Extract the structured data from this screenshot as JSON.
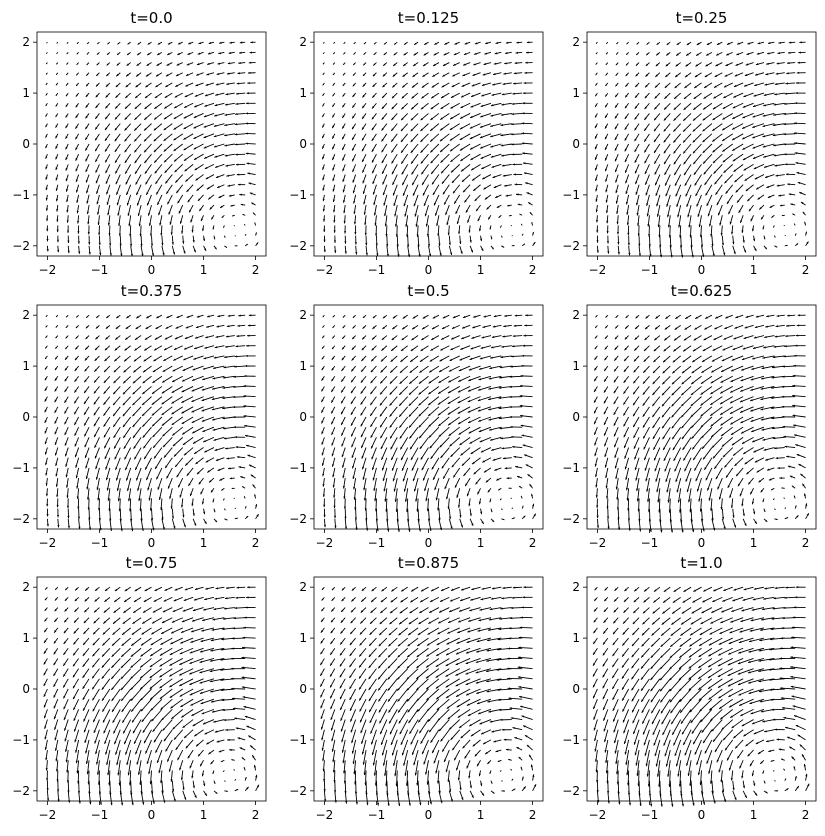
{
  "chart_data": [
    {
      "type": "quiver",
      "title": "t=0.0",
      "t": 0.0,
      "xlim": [
        -2.2,
        2.2
      ],
      "ylim": [
        -2.2,
        2.2
      ],
      "xticks": [
        -2,
        -1,
        0,
        1,
        2
      ],
      "yticks": [
        -2,
        -1,
        0,
        1,
        2
      ],
      "grid": false,
      "arrow_color": "#000000"
    },
    {
      "type": "quiver",
      "title": "t=0.125",
      "t": 0.125,
      "xlim": [
        -2.2,
        2.2
      ],
      "ylim": [
        -2.2,
        2.2
      ],
      "xticks": [
        -2,
        -1,
        0,
        1,
        2
      ],
      "yticks": [
        -2,
        -1,
        0,
        1,
        2
      ],
      "grid": false,
      "arrow_color": "#000000"
    },
    {
      "type": "quiver",
      "title": "t=0.25",
      "t": 0.25,
      "xlim": [
        -2.2,
        2.2
      ],
      "ylim": [
        -2.2,
        2.2
      ],
      "xticks": [
        -2,
        -1,
        0,
        1,
        2
      ],
      "yticks": [
        -2,
        -1,
        0,
        1,
        2
      ],
      "grid": false,
      "arrow_color": "#000000"
    },
    {
      "type": "quiver",
      "title": "t=0.375",
      "t": 0.375,
      "xlim": [
        -2.2,
        2.2
      ],
      "ylim": [
        -2.2,
        2.2
      ],
      "xticks": [
        -2,
        -1,
        0,
        1,
        2
      ],
      "yticks": [
        -2,
        -1,
        0,
        1,
        2
      ],
      "grid": false,
      "arrow_color": "#000000"
    },
    {
      "type": "quiver",
      "title": "t=0.5",
      "t": 0.5,
      "xlim": [
        -2.2,
        2.2
      ],
      "ylim": [
        -2.2,
        2.2
      ],
      "xticks": [
        -2,
        -1,
        0,
        1,
        2
      ],
      "yticks": [
        -2,
        -1,
        0,
        1,
        2
      ],
      "grid": false,
      "arrow_color": "#000000"
    },
    {
      "type": "quiver",
      "title": "t=0.625",
      "t": 0.625,
      "xlim": [
        -2.2,
        2.2
      ],
      "ylim": [
        -2.2,
        2.2
      ],
      "xticks": [
        -2,
        -1,
        0,
        1,
        2
      ],
      "yticks": [
        -2,
        -1,
        0,
        1,
        2
      ],
      "grid": false,
      "arrow_color": "#000000"
    },
    {
      "type": "quiver",
      "title": "t=0.75",
      "t": 0.75,
      "xlim": [
        -2.2,
        2.2
      ],
      "ylim": [
        -2.2,
        2.2
      ],
      "xticks": [
        -2,
        -1,
        0,
        1,
        2
      ],
      "yticks": [
        -2,
        -1,
        0,
        1,
        2
      ],
      "grid": false,
      "arrow_color": "#000000"
    },
    {
      "type": "quiver",
      "title": "t=0.875",
      "t": 0.875,
      "xlim": [
        -2.2,
        2.2
      ],
      "ylim": [
        -2.2,
        2.2
      ],
      "xticks": [
        -2,
        -1,
        0,
        1,
        2
      ],
      "yticks": [
        -2,
        -1,
        0,
        1,
        2
      ],
      "grid": false,
      "arrow_color": "#000000"
    },
    {
      "type": "quiver",
      "title": "t=1.0",
      "t": 1.0,
      "xlim": [
        -2.2,
        2.2
      ],
      "ylim": [
        -2.2,
        2.2
      ],
      "xticks": [
        -2,
        -1,
        0,
        1,
        2
      ],
      "yticks": [
        -2,
        -1,
        0,
        1,
        2
      ],
      "grid": false,
      "arrow_color": "#000000"
    }
  ]
}
